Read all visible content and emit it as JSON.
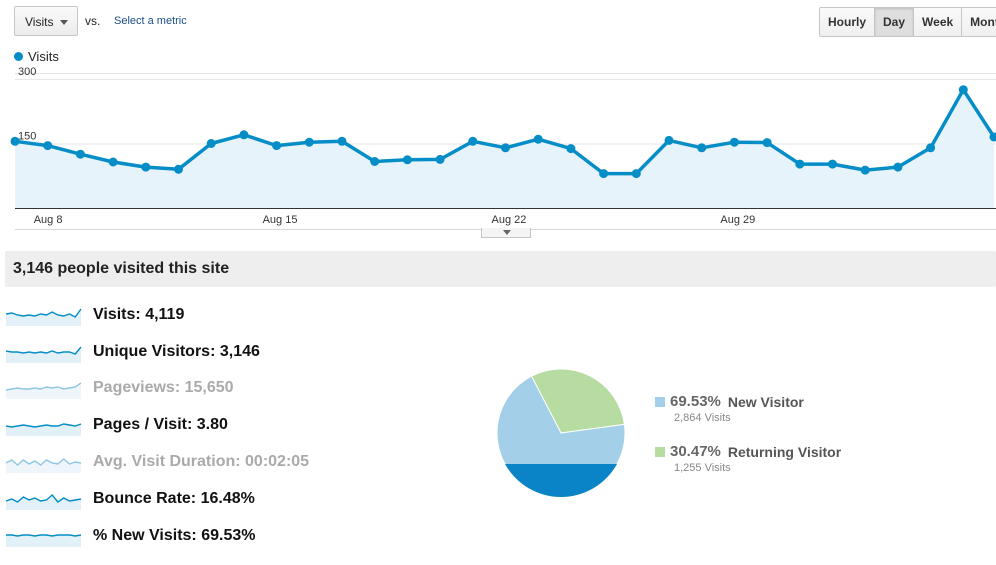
{
  "controls": {
    "metric_select_label": "Visits",
    "vs_label": "vs.",
    "select_metric_link": "Select a metric",
    "granularity": [
      {
        "label": "Hourly",
        "active": false
      },
      {
        "label": "Day",
        "active": true
      },
      {
        "label": "Week",
        "active": false
      },
      {
        "label": "Month",
        "active": false
      }
    ]
  },
  "legend": {
    "label": "Visits",
    "color": "#058dc7"
  },
  "chart_data": {
    "type": "area",
    "series": [
      {
        "name": "Visits",
        "color": "#058dc7",
        "values": [
          155,
          145,
          125,
          107,
          95,
          90,
          150,
          170,
          145,
          153,
          155,
          108,
          112,
          113,
          155,
          140,
          160,
          138,
          80,
          80,
          157,
          140,
          153,
          152,
          102,
          102,
          88,
          95,
          140,
          275,
          165
        ]
      }
    ],
    "y_ticks": [
      150,
      300
    ],
    "ylim": [
      0,
      330
    ],
    "x_tick_labels": [
      {
        "label": "Aug 8",
        "index": 1
      },
      {
        "label": "Aug 15",
        "index": 8
      },
      {
        "label": "Aug 22",
        "index": 15
      },
      {
        "label": "Aug 29",
        "index": 22
      }
    ],
    "grid": true
  },
  "summary": {
    "headline": "3,146 people visited this site"
  },
  "metrics": [
    {
      "label": "Visits",
      "value": "4,119",
      "faded": false
    },
    {
      "label": "Unique Visitors",
      "value": "3,146",
      "faded": false
    },
    {
      "label": "Pageviews",
      "value": "15,650",
      "faded": true
    },
    {
      "label": "Pages / Visit",
      "value": "3.80",
      "faded": false
    },
    {
      "label": "Avg. Visit Duration",
      "value": "00:02:05",
      "faded": true
    },
    {
      "label": "Bounce Rate",
      "value": "16.48%",
      "faded": false
    },
    {
      "label": "% New Visits",
      "value": "69.53%",
      "faded": false
    }
  ],
  "pie": {
    "slices": [
      {
        "name": "New Visitor",
        "percent_label": "69.53%",
        "visits_label": "2,864 Visits",
        "value": 69.53,
        "color": "#a3cfe8"
      },
      {
        "name": "Returning Visitor",
        "percent_label": "30.47%",
        "visits_label": "1,255 Visits",
        "value": 30.47,
        "color": "#b6dca1"
      }
    ]
  }
}
